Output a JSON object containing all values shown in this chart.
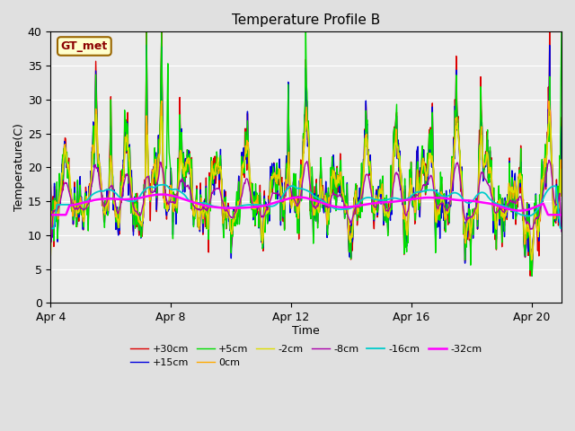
{
  "title": "Temperature Profile B",
  "xlabel": "Time",
  "ylabel": "Temperature(C)",
  "annotation": "GT_met",
  "ylim": [
    0,
    40
  ],
  "x_tick_labels": [
    "Apr 4",
    "Apr 8",
    "Apr 12",
    "Apr 16",
    "Apr 20"
  ],
  "x_tick_positions": [
    0,
    4,
    8,
    12,
    16
  ],
  "yticks": [
    0,
    5,
    10,
    15,
    20,
    25,
    30,
    35,
    40
  ],
  "series": [
    {
      "label": "+30cm",
      "color": "#dd0000",
      "lw": 1.0
    },
    {
      "label": "+15cm",
      "color": "#0000dd",
      "lw": 1.0
    },
    {
      "label": "+5cm",
      "color": "#00dd00",
      "lw": 1.0
    },
    {
      "label": "0cm",
      "color": "#ffaa00",
      "lw": 1.0
    },
    {
      "label": "-2cm",
      "color": "#dddd00",
      "lw": 1.0
    },
    {
      "label": "-8cm",
      "color": "#aa00aa",
      "lw": 1.0
    },
    {
      "label": "-16cm",
      "color": "#00cccc",
      "lw": 1.3
    },
    {
      "label": "-32cm",
      "color": "#ff00ff",
      "lw": 1.8
    }
  ],
  "bg_color": "#e0e0e0",
  "plot_bg": "#ebebeb",
  "legend_box_facecolor": "#ffffcc",
  "legend_box_edgecolor": "#996600"
}
